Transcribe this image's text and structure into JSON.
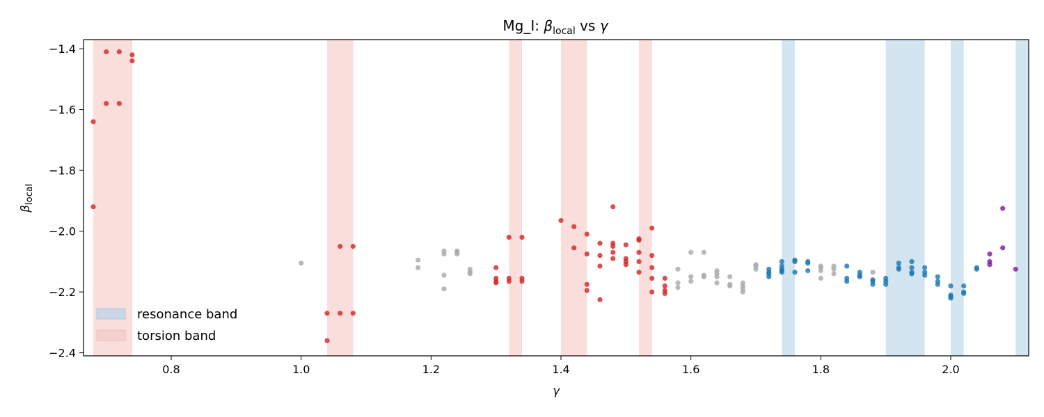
{
  "chart_data": {
    "type": "scatter",
    "title": {
      "prefix": "Mg_I: ",
      "beta": "β",
      "sub": "local",
      "mid": " vs ",
      "gamma": "γ"
    },
    "xlabel": "γ",
    "ylabel": {
      "beta": "β",
      "sub": "local"
    },
    "xlim": [
      0.665,
      2.12
    ],
    "ylim": [
      -2.41,
      -1.37
    ],
    "xticks": [
      0.8,
      1.0,
      1.2,
      1.4,
      1.6,
      1.8,
      2.0
    ],
    "xtick_labels": [
      "0.8",
      "1.0",
      "1.2",
      "1.4",
      "1.6",
      "1.8",
      "2.0"
    ],
    "yticks": [
      -1.4,
      -1.6,
      -1.8,
      -2.0,
      -2.2,
      -2.4
    ],
    "ytick_labels": [
      "−1.4",
      "−1.6",
      "−1.8",
      "−2.0",
      "−2.2",
      "−2.4"
    ],
    "grid": false,
    "legend": {
      "placement": "lower-left",
      "entries": [
        {
          "label": "resonance band",
          "color": "#c9dbe9"
        },
        {
          "label": "torsion band",
          "color": "#f6d4d3"
        }
      ]
    },
    "colors": {
      "torsion": "#d62728",
      "resonance": "#1f77b4",
      "neutral": "#a9a9a9",
      "special": "#7b1fa2",
      "torsion_band": "#f9dedc",
      "resonance_band": "#d3e5f0"
    },
    "bands": [
      {
        "type": "torsion",
        "x": [
          0.68,
          0.74
        ]
      },
      {
        "type": "torsion",
        "x": [
          1.04,
          1.08
        ]
      },
      {
        "type": "torsion",
        "x": [
          1.32,
          1.34
        ]
      },
      {
        "type": "torsion",
        "x": [
          1.4,
          1.44
        ]
      },
      {
        "type": "torsion",
        "x": [
          1.52,
          1.54
        ]
      },
      {
        "type": "resonance",
        "x": [
          1.74,
          1.76
        ]
      },
      {
        "type": "resonance",
        "x": [
          1.9,
          1.96
        ]
      },
      {
        "type": "resonance",
        "x": [
          2.0,
          2.02
        ]
      },
      {
        "type": "resonance",
        "x": [
          2.1,
          2.12
        ]
      }
    ],
    "series": [
      {
        "kind": "torsion",
        "points": [
          [
            0.68,
            -1.64
          ],
          [
            0.68,
            -1.92
          ],
          [
            0.7,
            -1.41
          ],
          [
            0.7,
            -1.58
          ],
          [
            0.72,
            -1.41
          ],
          [
            0.72,
            -1.58
          ],
          [
            0.74,
            -1.42
          ],
          [
            0.74,
            -1.44
          ],
          [
            1.04,
            -2.27
          ],
          [
            1.04,
            -2.36
          ],
          [
            1.06,
            -2.05
          ],
          [
            1.06,
            -2.27
          ],
          [
            1.08,
            -2.05
          ],
          [
            1.08,
            -2.27
          ],
          [
            1.3,
            -2.12
          ],
          [
            1.3,
            -2.155
          ],
          [
            1.3,
            -2.165
          ],
          [
            1.3,
            -2.17
          ],
          [
            1.32,
            -2.02
          ],
          [
            1.32,
            -2.155
          ],
          [
            1.32,
            -2.165
          ],
          [
            1.34,
            -2.02
          ],
          [
            1.34,
            -2.155
          ],
          [
            1.34,
            -2.165
          ],
          [
            1.4,
            -1.965
          ],
          [
            1.42,
            -1.985
          ],
          [
            1.42,
            -2.055
          ],
          [
            1.44,
            -2.01
          ],
          [
            1.44,
            -2.075
          ],
          [
            1.44,
            -2.175
          ],
          [
            1.44,
            -2.195
          ],
          [
            1.46,
            -2.04
          ],
          [
            1.46,
            -2.08
          ],
          [
            1.46,
            -2.115
          ],
          [
            1.46,
            -2.225
          ],
          [
            1.48,
            -1.92
          ],
          [
            1.48,
            -2.04
          ],
          [
            1.48,
            -2.05
          ],
          [
            1.48,
            -2.07
          ],
          [
            1.48,
            -2.09
          ],
          [
            1.5,
            -2.045
          ],
          [
            1.5,
            -2.09
          ],
          [
            1.5,
            -2.1
          ],
          [
            1.5,
            -2.11
          ],
          [
            1.52,
            -2.025
          ],
          [
            1.52,
            -2.03
          ],
          [
            1.52,
            -2.07
          ],
          [
            1.52,
            -2.1
          ],
          [
            1.52,
            -2.135
          ],
          [
            1.54,
            -1.99
          ],
          [
            1.54,
            -2.08
          ],
          [
            1.54,
            -2.12
          ],
          [
            1.54,
            -2.155
          ],
          [
            1.54,
            -2.2
          ],
          [
            1.56,
            -2.155
          ],
          [
            1.56,
            -2.18
          ],
          [
            1.56,
            -2.195
          ],
          [
            1.56,
            -2.205
          ]
        ]
      },
      {
        "kind": "neutral",
        "points": [
          [
            1.0,
            -2.105
          ],
          [
            1.18,
            -2.095
          ],
          [
            1.18,
            -2.12
          ],
          [
            1.22,
            -2.065
          ],
          [
            1.22,
            -2.075
          ],
          [
            1.22,
            -2.145
          ],
          [
            1.22,
            -2.19
          ],
          [
            1.24,
            -2.065
          ],
          [
            1.24,
            -2.07
          ],
          [
            1.24,
            -2.075
          ],
          [
            1.26,
            -2.125
          ],
          [
            1.26,
            -2.135
          ],
          [
            1.26,
            -2.14
          ],
          [
            1.58,
            -2.125
          ],
          [
            1.58,
            -2.17
          ],
          [
            1.58,
            -2.185
          ],
          [
            1.6,
            -2.07
          ],
          [
            1.6,
            -2.15
          ],
          [
            1.6,
            -2.165
          ],
          [
            1.62,
            -2.07
          ],
          [
            1.62,
            -2.145
          ],
          [
            1.62,
            -2.15
          ],
          [
            1.64,
            -2.13
          ],
          [
            1.64,
            -2.14
          ],
          [
            1.64,
            -2.15
          ],
          [
            1.64,
            -2.17
          ],
          [
            1.66,
            -2.15
          ],
          [
            1.66,
            -2.175
          ],
          [
            1.66,
            -2.18
          ],
          [
            1.68,
            -2.17
          ],
          [
            1.68,
            -2.18
          ],
          [
            1.68,
            -2.19
          ],
          [
            1.68,
            -2.2
          ],
          [
            1.7,
            -2.11
          ],
          [
            1.7,
            -2.115
          ],
          [
            1.7,
            -2.125
          ],
          [
            1.8,
            -2.115
          ],
          [
            1.8,
            -2.12
          ],
          [
            1.8,
            -2.13
          ],
          [
            1.8,
            -2.155
          ],
          [
            1.82,
            -2.115
          ],
          [
            1.82,
            -2.125
          ],
          [
            1.82,
            -2.14
          ],
          [
            1.88,
            -2.135
          ]
        ]
      },
      {
        "kind": "resonance",
        "points": [
          [
            1.72,
            -2.125
          ],
          [
            1.72,
            -2.135
          ],
          [
            1.72,
            -2.14
          ],
          [
            1.72,
            -2.15
          ],
          [
            1.74,
            -2.1
          ],
          [
            1.74,
            -2.115
          ],
          [
            1.74,
            -2.125
          ],
          [
            1.74,
            -2.13
          ],
          [
            1.74,
            -2.135
          ],
          [
            1.76,
            -2.095
          ],
          [
            1.76,
            -2.1
          ],
          [
            1.76,
            -2.135
          ],
          [
            1.78,
            -2.1
          ],
          [
            1.78,
            -2.105
          ],
          [
            1.78,
            -2.13
          ],
          [
            1.84,
            -2.115
          ],
          [
            1.84,
            -2.155
          ],
          [
            1.84,
            -2.165
          ],
          [
            1.86,
            -2.135
          ],
          [
            1.86,
            -2.145
          ],
          [
            1.86,
            -2.15
          ],
          [
            1.88,
            -2.16
          ],
          [
            1.88,
            -2.165
          ],
          [
            1.88,
            -2.175
          ],
          [
            1.9,
            -2.155
          ],
          [
            1.9,
            -2.165
          ],
          [
            1.9,
            -2.175
          ],
          [
            1.92,
            -2.105
          ],
          [
            1.92,
            -2.12
          ],
          [
            1.92,
            -2.125
          ],
          [
            1.94,
            -2.1
          ],
          [
            1.94,
            -2.12
          ],
          [
            1.94,
            -2.135
          ],
          [
            1.94,
            -2.14
          ],
          [
            1.96,
            -2.12
          ],
          [
            1.96,
            -2.135
          ],
          [
            1.96,
            -2.145
          ],
          [
            1.98,
            -2.15
          ],
          [
            1.98,
            -2.165
          ],
          [
            1.98,
            -2.175
          ],
          [
            2.0,
            -2.18
          ],
          [
            2.0,
            -2.21
          ],
          [
            2.0,
            -2.215
          ],
          [
            2.0,
            -2.22
          ],
          [
            2.02,
            -2.18
          ],
          [
            2.02,
            -2.2
          ],
          [
            2.02,
            -2.205
          ],
          [
            2.04,
            -2.12
          ],
          [
            2.04,
            -2.125
          ]
        ]
      },
      {
        "kind": "special",
        "points": [
          [
            2.06,
            -2.075
          ],
          [
            2.06,
            -2.1
          ],
          [
            2.06,
            -2.11
          ],
          [
            2.08,
            -1.925
          ],
          [
            2.08,
            -2.055
          ],
          [
            2.1,
            -2.125
          ]
        ]
      }
    ]
  }
}
